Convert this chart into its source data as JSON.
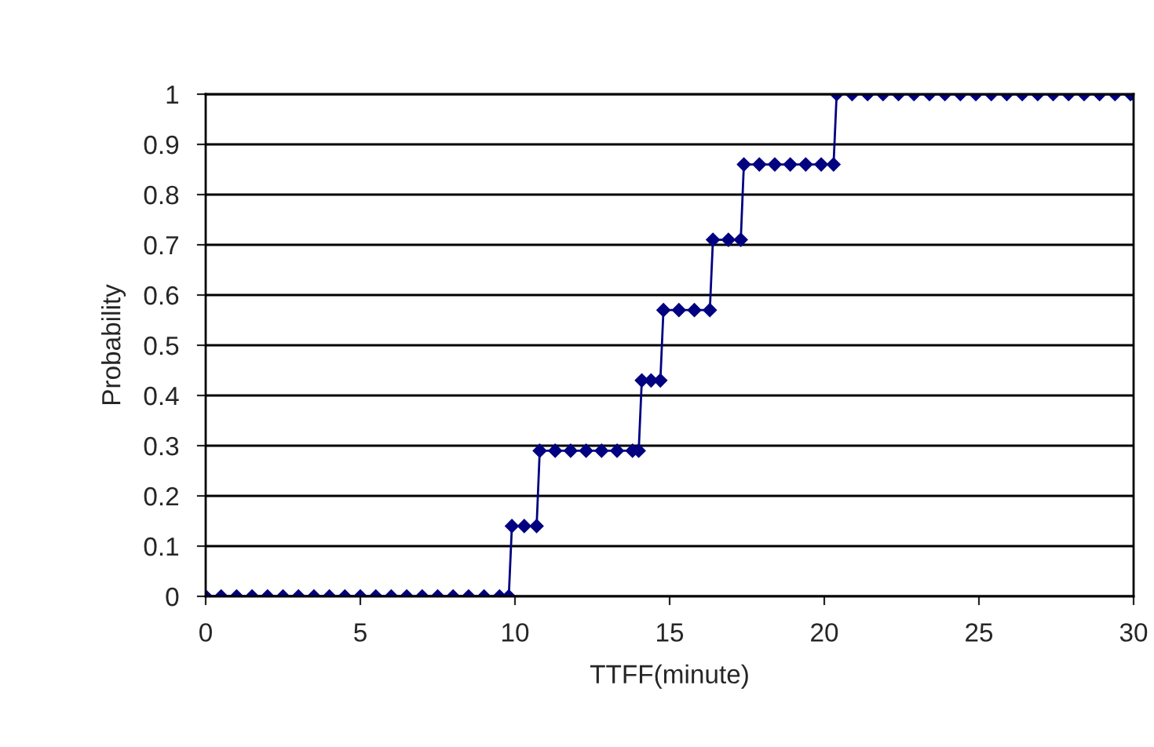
{
  "chart_data": {
    "type": "line",
    "xlabel": "TTFF(minute)",
    "ylabel": "Probability",
    "xlim": [
      0,
      30
    ],
    "xticks": [
      0,
      5,
      10,
      15,
      20,
      25,
      30
    ],
    "ylim": [
      0,
      1
    ],
    "yticks": [
      0,
      0.1,
      0.2,
      0.3,
      0.4,
      0.5,
      0.6,
      0.7,
      0.8,
      0.9,
      1
    ],
    "grid": "y",
    "marker": "diamond",
    "line_style": "solid",
    "series": [
      {
        "color": "#000080",
        "x": [
          0,
          0.5,
          1,
          1.5,
          2,
          2.5,
          3,
          3.5,
          4,
          4.5,
          5,
          5.5,
          6,
          6.5,
          7,
          7.5,
          8,
          8.5,
          9,
          9.5,
          9.8,
          9.9,
          10.3,
          10.7,
          10.8,
          11.3,
          11.8,
          12.3,
          12.8,
          13.3,
          13.8,
          14.0,
          14.1,
          14.4,
          14.7,
          14.8,
          15.3,
          15.8,
          16.3,
          16.4,
          16.9,
          17.3,
          17.4,
          17.9,
          18.4,
          18.9,
          19.4,
          19.9,
          20.3,
          20.4,
          20.9,
          21.4,
          21.9,
          22.4,
          22.9,
          23.4,
          23.9,
          24.4,
          24.9,
          25.4,
          25.9,
          26.4,
          26.9,
          27.4,
          27.9,
          28.4,
          28.9,
          29.4,
          29.9,
          30
        ],
        "values": [
          0,
          0,
          0,
          0,
          0,
          0,
          0,
          0,
          0,
          0,
          0,
          0,
          0,
          0,
          0,
          0,
          0,
          0,
          0,
          0,
          0,
          0.14,
          0.14,
          0.14,
          0.29,
          0.29,
          0.29,
          0.29,
          0.29,
          0.29,
          0.29,
          0.29,
          0.43,
          0.43,
          0.43,
          0.57,
          0.57,
          0.57,
          0.57,
          0.71,
          0.71,
          0.71,
          0.86,
          0.86,
          0.86,
          0.86,
          0.86,
          0.86,
          0.86,
          1,
          1,
          1,
          1,
          1,
          1,
          1,
          1,
          1,
          1,
          1,
          1,
          1,
          1,
          1,
          1,
          1,
          1,
          1,
          1,
          1
        ]
      }
    ]
  }
}
